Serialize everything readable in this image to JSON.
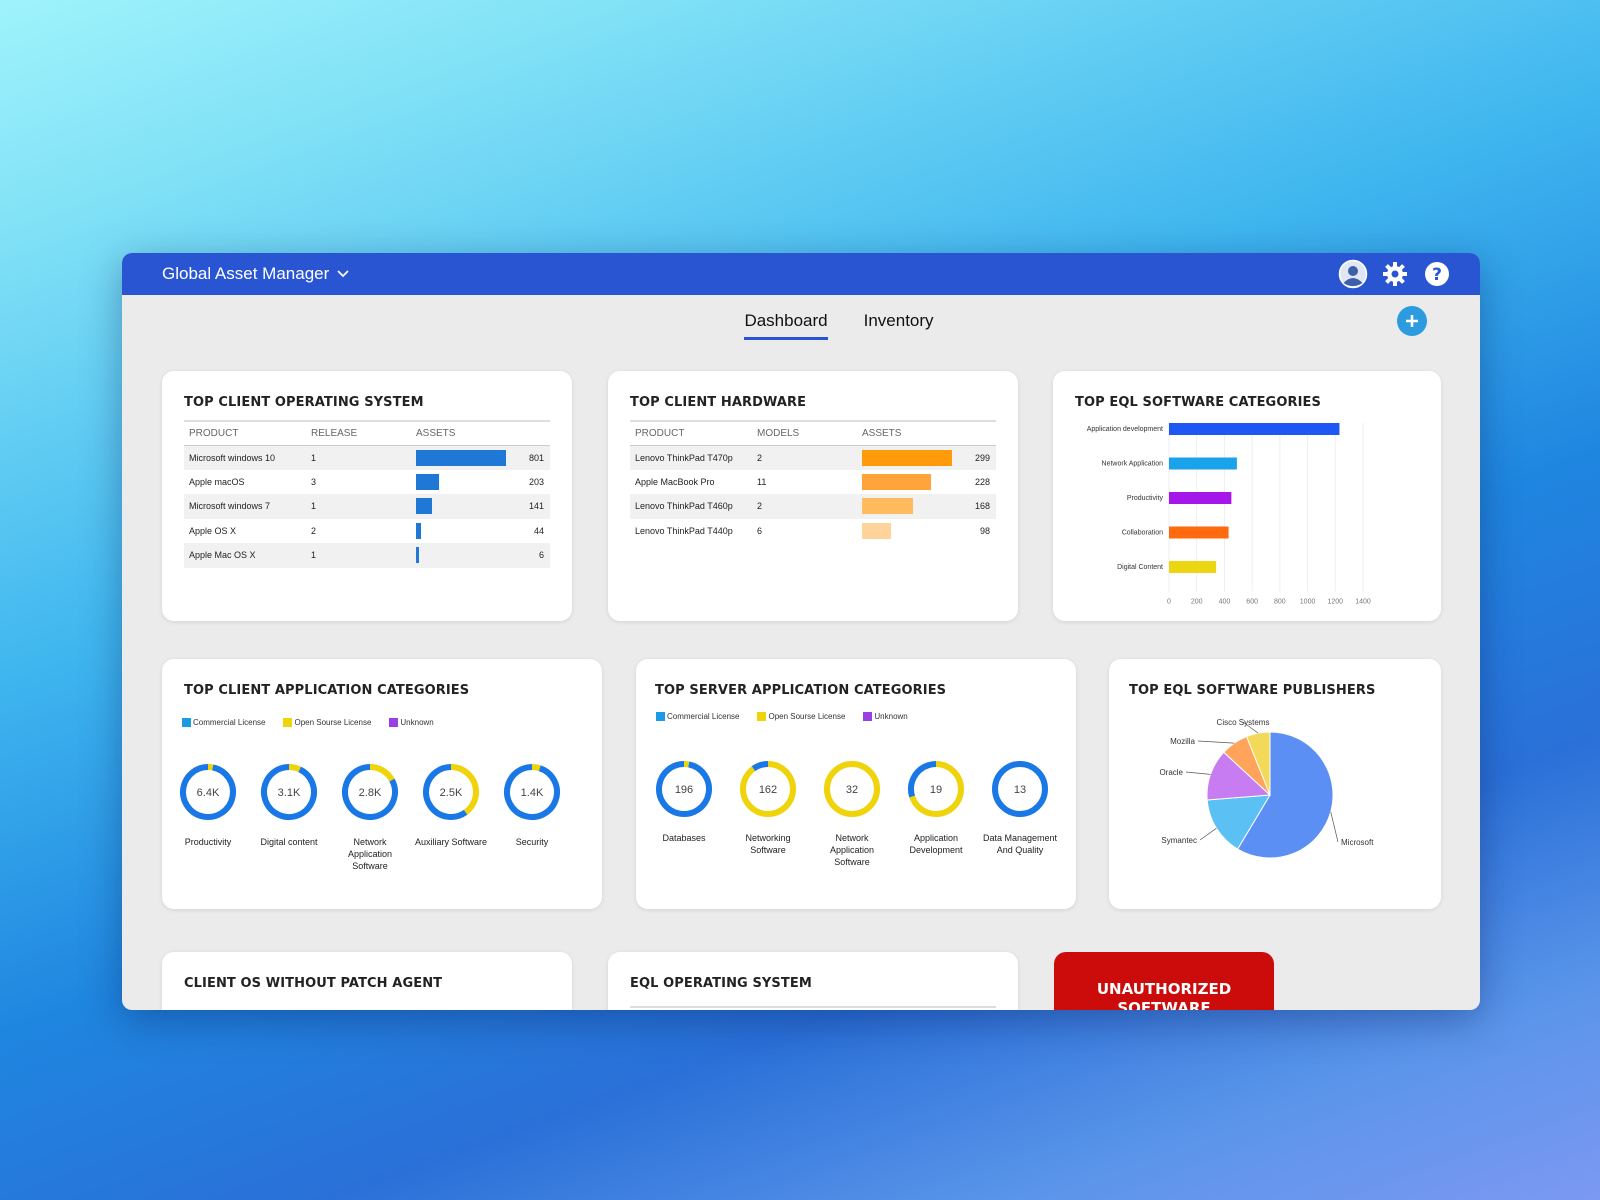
{
  "app": {
    "title": "Global Asset Manager"
  },
  "header_icons": [
    "user-avatar-icon",
    "gear-icon",
    "help-icon"
  ],
  "tabs": [
    {
      "label": "Dashboard",
      "active": true
    },
    {
      "label": "Inventory",
      "active": false
    }
  ],
  "colors": {
    "header": "#2955d3",
    "os_bar": "#1f78d6",
    "hw_bar": "#ff9c12",
    "alert": "#cc0b0b"
  },
  "client_os": {
    "title": "TOP CLIENT OPERATING SYSTEM",
    "columns": [
      "PRODUCT",
      "RELEASE",
      "ASSETS"
    ],
    "rows": [
      {
        "product": "Microsoft windows 10",
        "release": "1",
        "assets": "801",
        "value": 801
      },
      {
        "product": "Apple macOS",
        "release": "3",
        "assets": "203",
        "value": 203
      },
      {
        "product": "Microsoft windows 7",
        "release": "1",
        "assets": "141",
        "value": 141
      },
      {
        "product": "Apple OS X",
        "release": "2",
        "assets": "44",
        "value": 44
      },
      {
        "product": "Apple Mac OS X",
        "release": "1",
        "assets": "6",
        "value": 6
      }
    ]
  },
  "client_hw": {
    "title": "TOP CLIENT HARDWARE",
    "columns": [
      "PRODUCT",
      "MODELS",
      "ASSETS"
    ],
    "rows": [
      {
        "product": "Lenovo ThinkPad T470p",
        "models": "2",
        "assets": "299",
        "value": 299
      },
      {
        "product": "Apple MacBook Pro",
        "models": "11",
        "assets": "228",
        "value": 228
      },
      {
        "product": "Lenovo ThinkPad T460p",
        "models": "2",
        "assets": "168",
        "value": 168
      },
      {
        "product": "Lenovo ThinkPad T440p",
        "models": "6",
        "assets": "98",
        "value": 98
      }
    ]
  },
  "eql_categories": {
    "title": "TOP EQL SOFTWARE CATEGORIES",
    "chart_data": {
      "type": "bar",
      "orientation": "horizontal",
      "categories": [
        "Application development",
        "Network Application",
        "Productivity",
        "Collaboration",
        "Digital Content"
      ],
      "values": [
        1230,
        490,
        450,
        430,
        340
      ],
      "colors": [
        "#1f57f5",
        "#1aa3ea",
        "#a416ea",
        "#ff6a0f",
        "#ecd612"
      ],
      "xticks": [
        "0",
        "200",
        "400",
        "600",
        "800",
        "1000",
        "1200",
        "1400"
      ],
      "xlim": [
        0,
        1400
      ],
      "grid": true
    }
  },
  "client_app": {
    "title": "TOP CLIENT APPLICATION CATEGORIES",
    "legend": [
      "Commercial License",
      "Open Sourse License",
      "Unknown"
    ],
    "legend_colors": [
      "#1a9be3",
      "#efd40c",
      "#9a3fe3"
    ],
    "chart_data": {
      "type": "donut",
      "items": [
        {
          "label": "Productivity",
          "value": "6.4K",
          "commercial": 0.97,
          "open": 0.03
        },
        {
          "label": "Digital content",
          "value": "3.1K",
          "commercial": 0.93,
          "open": 0.07
        },
        {
          "label": "Network\nApplication\nSoftware",
          "value": "2.8K",
          "commercial": 0.83,
          "open": 0.17
        },
        {
          "label": "Auxiliary Software",
          "value": "2.5K",
          "commercial": 0.6,
          "open": 0.4
        },
        {
          "label": "Security",
          "value": "1.4K",
          "commercial": 0.95,
          "open": 0.05
        }
      ]
    }
  },
  "server_app": {
    "title": "TOP SERVER APPLICATION CATEGORIES",
    "legend": [
      "Commercial License",
      "Open Sourse License",
      "Unknown"
    ],
    "legend_colors": [
      "#1a9be3",
      "#efd40c",
      "#9a3fe3"
    ],
    "chart_data": {
      "type": "donut",
      "items": [
        {
          "label": "Databases",
          "value": "196",
          "commercial": 0.97,
          "open": 0.03
        },
        {
          "label": "Networking\nSoftware",
          "value": "162",
          "commercial": 0.1,
          "open": 0.9
        },
        {
          "label": "Network\nApplication\nSoftware",
          "value": "32",
          "commercial": 0.0,
          "open": 1.0
        },
        {
          "label": "Application\nDevelopment",
          "value": "19",
          "commercial": 0.3,
          "open": 0.7
        },
        {
          "label": "Data Management\nAnd Quality",
          "value": "13",
          "commercial": 1.0,
          "open": 0.0
        }
      ]
    }
  },
  "publishers": {
    "title": "TOP EQL SOFTWARE PUBLISHERS",
    "chart_data": {
      "type": "pie",
      "labels": [
        "Microsoft",
        "Symantec",
        "Oracle",
        "Mozilla",
        "Cisco Systems"
      ],
      "values": [
        58,
        15,
        13,
        7,
        6
      ],
      "colors": [
        "#5b8ff3",
        "#5bc0f3",
        "#c77cf2",
        "#ffa45a",
        "#f3d95a"
      ]
    }
  },
  "client_os_no_patch": {
    "title": "CLIENT OS WITHOUT PATCH AGENT"
  },
  "eql_os": {
    "title": "EQL OPERATING SYSTEM"
  },
  "unauthorized": {
    "label": "UNAUTHORIZED SOFTWARE"
  }
}
